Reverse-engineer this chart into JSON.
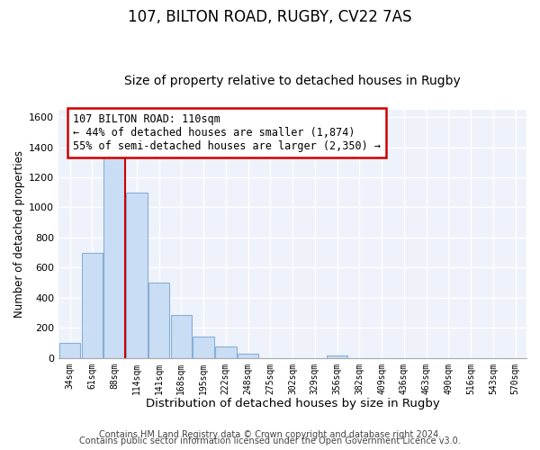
{
  "title": "107, BILTON ROAD, RUGBY, CV22 7AS",
  "subtitle": "Size of property relative to detached houses in Rugby",
  "xlabel": "Distribution of detached houses by size in Rugby",
  "ylabel": "Number of detached properties",
  "bin_labels": [
    "34sqm",
    "61sqm",
    "88sqm",
    "114sqm",
    "141sqm",
    "168sqm",
    "195sqm",
    "222sqm",
    "248sqm",
    "275sqm",
    "302sqm",
    "329sqm",
    "356sqm",
    "382sqm",
    "409sqm",
    "436sqm",
    "463sqm",
    "490sqm",
    "516sqm",
    "543sqm",
    "570sqm"
  ],
  "bar_heights": [
    100,
    700,
    1340,
    1100,
    500,
    285,
    140,
    75,
    30,
    0,
    0,
    0,
    15,
    0,
    0,
    0,
    0,
    0,
    0,
    0,
    0
  ],
  "bar_color": "#c9ddf5",
  "bar_edge_color": "#89afd4",
  "vline_color": "#cc0000",
  "annotation_line1": "107 BILTON ROAD: 110sqm",
  "annotation_line2": "← 44% of detached houses are smaller (1,874)",
  "annotation_line3": "55% of semi-detached houses are larger (2,350) →",
  "annotation_box_color": "white",
  "annotation_box_edge": "#cc0000",
  "ylim": [
    0,
    1650
  ],
  "yticks": [
    0,
    200,
    400,
    600,
    800,
    1000,
    1200,
    1400,
    1600
  ],
  "footer_line1": "Contains HM Land Registry data © Crown copyright and database right 2024.",
  "footer_line2": "Contains public sector information licensed under the Open Government Licence v3.0.",
  "background_color": "#ffffff",
  "plot_background": "#eef2fb",
  "grid_color": "white",
  "title_fontsize": 12,
  "subtitle_fontsize": 10,
  "xlabel_fontsize": 9.5,
  "ylabel_fontsize": 8.5,
  "footer_fontsize": 7
}
